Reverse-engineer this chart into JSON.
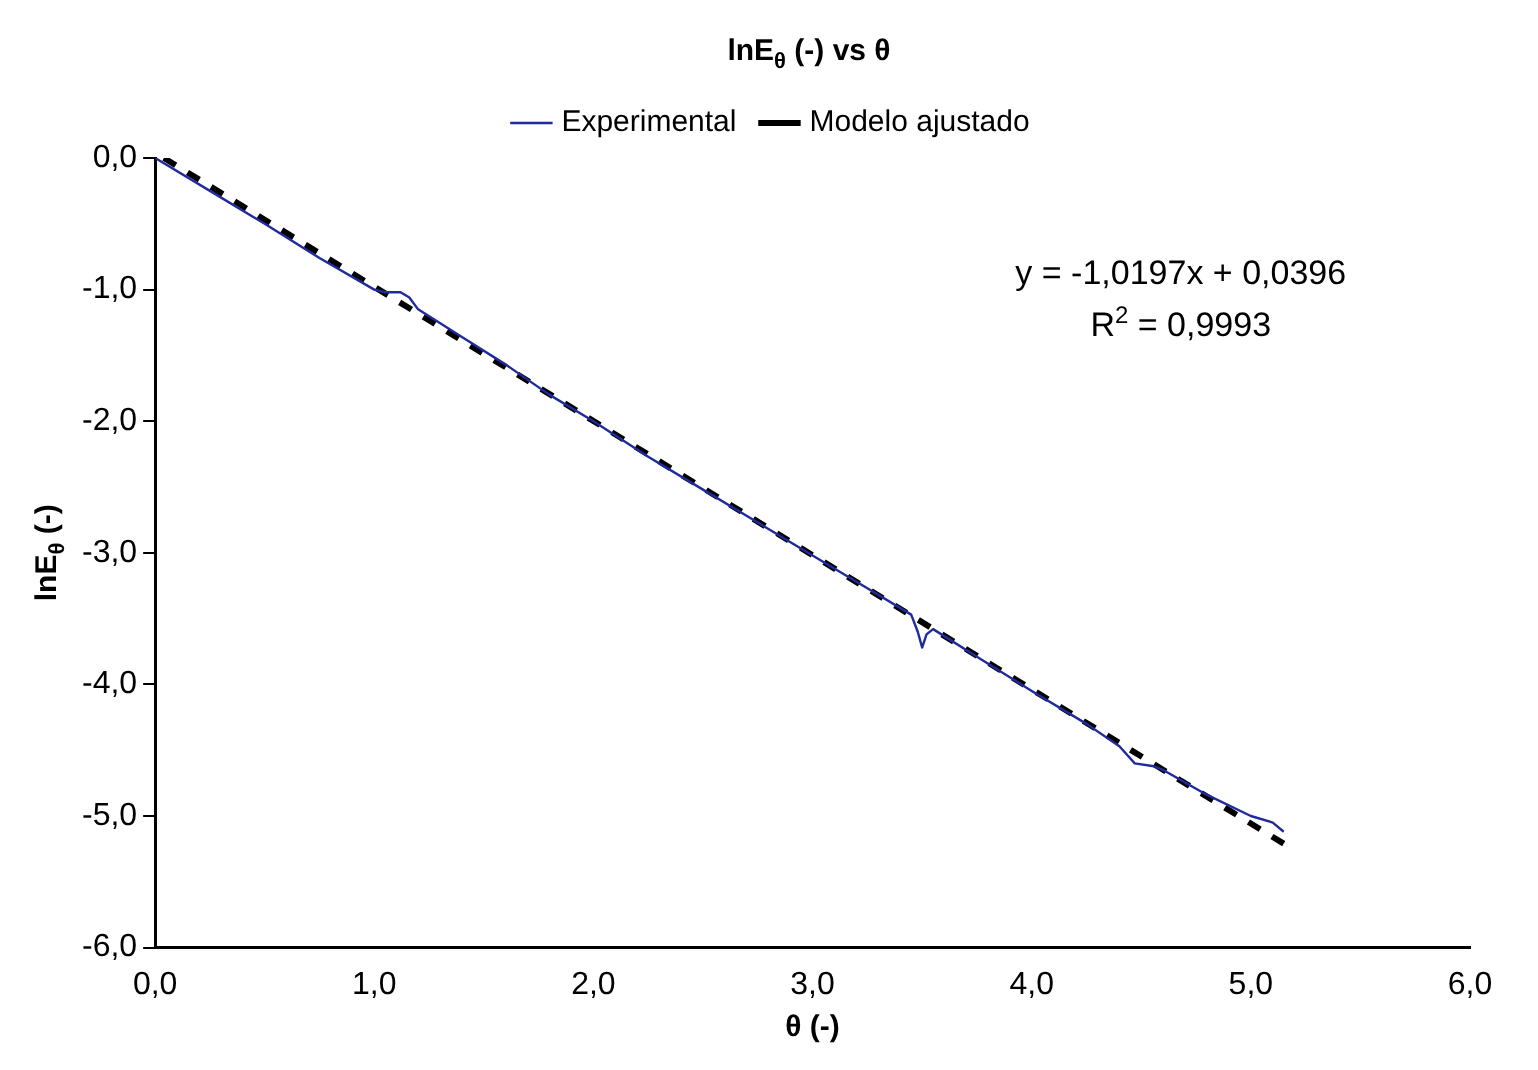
{
  "chart_data": {
    "type": "line",
    "title": "lnE$_{θ}$ (-) vs θ",
    "xlabel": "θ (-)",
    "ylabel": "lnE$_{θ}$ (-)",
    "series": [
      {
        "name": "Experimental",
        "color": "#1f2a9c",
        "line_style": "solid",
        "x": [
          0,
          0.25,
          0.5,
          0.75,
          1.0,
          1.05,
          1.12,
          1.16,
          1.2,
          1.4,
          1.6,
          1.8,
          2.0,
          2.25,
          2.5,
          2.75,
          3.0,
          3.25,
          3.45,
          3.48,
          3.5,
          3.52,
          3.55,
          3.75,
          4.0,
          4.25,
          4.4,
          4.47,
          4.55,
          4.6,
          4.8,
          5.0,
          5.1,
          5.15
        ],
        "values": [
          0.0,
          -0.25,
          -0.5,
          -0.76,
          -1.0,
          -1.02,
          -1.02,
          -1.06,
          -1.15,
          -1.36,
          -1.57,
          -1.8,
          -2.0,
          -2.27,
          -2.52,
          -2.77,
          -3.02,
          -3.27,
          -3.47,
          -3.6,
          -3.72,
          -3.62,
          -3.58,
          -3.79,
          -4.05,
          -4.3,
          -4.47,
          -4.6,
          -4.62,
          -4.65,
          -4.84,
          -5.0,
          -5.05,
          -5.12
        ]
      },
      {
        "name": "Modelo ajustado",
        "color": "#000000",
        "line_style": "dashed",
        "x": [
          0.04,
          5.15
        ],
        "values": [
          0.0,
          -5.21
        ]
      }
    ],
    "xlim": [
      0,
      6
    ],
    "xticks": [
      {
        "value": 0,
        "label": "0,0"
      },
      {
        "value": 1,
        "label": "1,0"
      },
      {
        "value": 2,
        "label": "2,0"
      },
      {
        "value": 3,
        "label": "3,0"
      },
      {
        "value": 4,
        "label": "4,0"
      },
      {
        "value": 5,
        "label": "5,0"
      },
      {
        "value": 6,
        "label": "6,0"
      }
    ],
    "ylim": [
      -6,
      0
    ],
    "yticks": [
      {
        "value": 0,
        "label": "0,0"
      },
      {
        "value": -1,
        "label": "-1,0"
      },
      {
        "value": -2,
        "label": "-2,0"
      },
      {
        "value": -3,
        "label": "-3,0"
      },
      {
        "value": -4,
        "label": "-4,0"
      },
      {
        "value": -5,
        "label": "-5,0"
      },
      {
        "value": -6,
        "label": "-6,0"
      }
    ],
    "annotations": [
      "y = -1,0197x + 0,0396",
      "R$^{2}$ = 0,9993"
    ],
    "grid": false,
    "legend": "top",
    "marker": "none"
  }
}
